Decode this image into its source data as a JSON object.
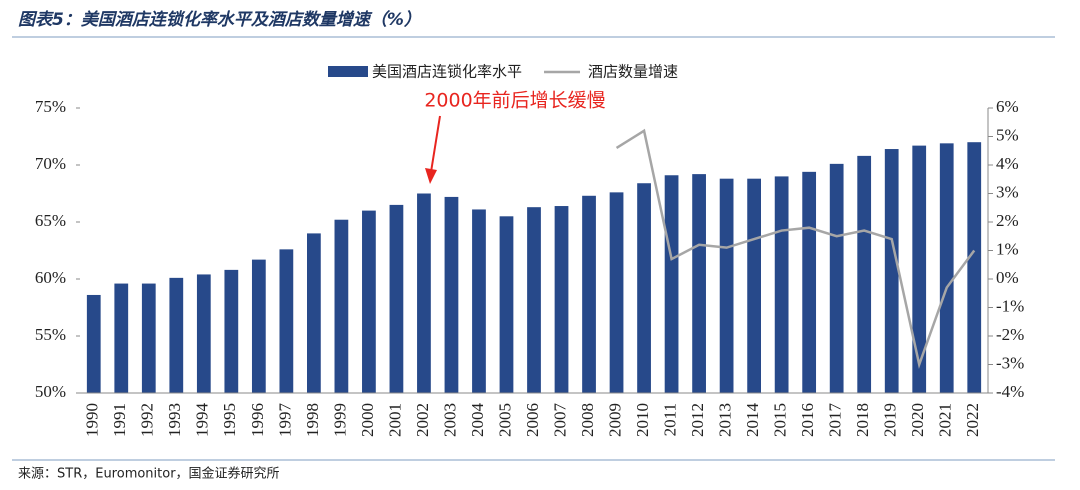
{
  "chart_data": {
    "type": "bar_line",
    "title": "图表5：美国酒店连锁化率水平及酒店数量增速（%）",
    "annotation": "2000年前后增长缓慢",
    "source": "来源：STR，Euromonitor，国金证券研究所",
    "categories": [
      "1990",
      "1991",
      "1992",
      "1993",
      "1994",
      "1995",
      "1996",
      "1997",
      "1998",
      "1999",
      "2000",
      "2001",
      "2002",
      "2003",
      "2004",
      "2005",
      "2006",
      "2007",
      "2008",
      "2009",
      "2010",
      "2011",
      "2012",
      "2013",
      "2014",
      "2015",
      "2016",
      "2017",
      "2018",
      "2019",
      "2020",
      "2021",
      "2022"
    ],
    "series": [
      {
        "name": "美国酒店连锁化率水平",
        "type": "bar",
        "color": "#27498a",
        "axis": "y",
        "values": [
          58.6,
          59.6,
          59.6,
          60.1,
          60.4,
          60.8,
          61.7,
          62.6,
          64.0,
          65.2,
          66.0,
          66.5,
          67.5,
          67.2,
          66.1,
          65.5,
          66.3,
          66.4,
          67.3,
          67.6,
          68.4,
          69.1,
          69.2,
          68.8,
          68.8,
          69.0,
          69.4,
          70.1,
          70.8,
          71.4,
          71.7,
          71.9,
          72.0
        ]
      },
      {
        "name": "酒店数量增速",
        "type": "line",
        "color": "#a6a6a6",
        "axis": "y2",
        "values": [
          null,
          null,
          null,
          null,
          null,
          null,
          null,
          null,
          null,
          null,
          null,
          null,
          null,
          null,
          null,
          null,
          null,
          null,
          null,
          4.6,
          5.2,
          0.7,
          1.2,
          1.1,
          1.4,
          1.7,
          1.8,
          1.5,
          1.7,
          1.4,
          -3.0,
          -0.3,
          1.0
        ]
      }
    ],
    "ylim": [
      50,
      75
    ],
    "yticks": [
      {
        "value": 50,
        "label": "50%"
      },
      {
        "value": 55,
        "label": "55%"
      },
      {
        "value": 60,
        "label": "60%"
      },
      {
        "value": 65,
        "label": "65%"
      },
      {
        "value": 70,
        "label": "70%"
      },
      {
        "value": 75,
        "label": "75%"
      }
    ],
    "y2lim": [
      -4,
      6
    ],
    "y2ticks": [
      {
        "value": -4,
        "label": "-4%"
      },
      {
        "value": -3,
        "label": "-3%"
      },
      {
        "value": -2,
        "label": "-2%"
      },
      {
        "value": -1,
        "label": "-1%"
      },
      {
        "value": 0,
        "label": "0%"
      },
      {
        "value": 1,
        "label": "1%"
      },
      {
        "value": 2,
        "label": "2%"
      },
      {
        "value": 3,
        "label": "3%"
      },
      {
        "value": 4,
        "label": "4%"
      },
      {
        "value": 5,
        "label": "5%"
      },
      {
        "value": 6,
        "label": "6%"
      }
    ],
    "legend": "top"
  }
}
